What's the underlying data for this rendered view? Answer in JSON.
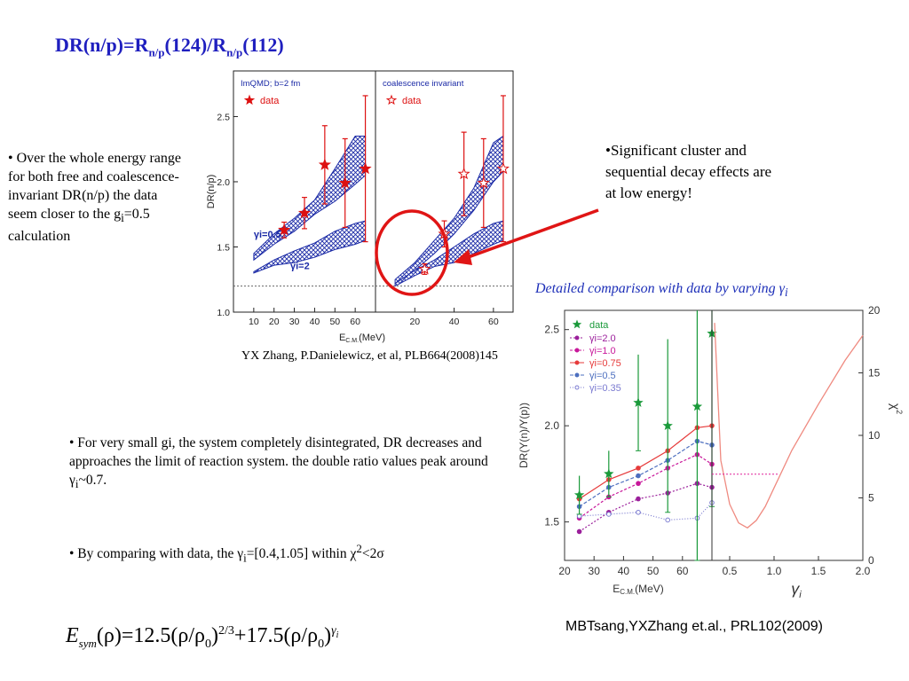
{
  "slide": {
    "title": {
      "main": "DR(n/p)=R",
      "sub1": "n/p",
      "mid": "(124)/R",
      "sub2": "n/p",
      "end": "(112)"
    },
    "left_bullet": {
      "prefix": "• Over the whole energy range for both free and coalescence-invariant DR(n/p) the data seem closer to the g",
      "sub": "i",
      "suffix": "=0.5 calculation"
    },
    "right_bullet": "•Significant cluster and sequential decay effects are at low energy!",
    "ref1": "YX Zhang, P.Danielewicz, et al, PLB664(2008)145",
    "detail_caption": {
      "text": "Detailed comparison with data by varying ",
      "symbol": "γ",
      "sub": "i"
    },
    "bullet3": {
      "text1": "•  For very small gi, the system completely disintegrated, DR decreases and approaches the limit of reaction system. the double ratio values peak around γ",
      "sub": "i",
      "text2": "~0.7."
    },
    "bullet4": {
      "text1": "•  By comparing with data, the γ",
      "sub": "i",
      "text2": "=[0.4,1.05] within χ",
      "sup": "2",
      "text3": "<2σ"
    },
    "ref2": "MBTsang,YXZhang et.al., PRL102(2009)",
    "equation": {
      "lhs": "E",
      "lhs_sub": "sym",
      "arg": "(ρ)",
      "eq": "=12.5(ρ/ρ",
      "rho_sub": "0",
      "exp1": "2/3",
      "plus": "+17.5(ρ/ρ",
      "exp2": "γ",
      "exp2_sub": "i"
    }
  },
  "chart_data": [
    {
      "type": "scatter",
      "panels": [
        "ImQMD; b=2 fm",
        "coalescence invariant"
      ],
      "legend": [
        "data"
      ],
      "ylabel": "DR(n/p)",
      "xlabel": "E",
      "xlabel_sub": "C.M.",
      "xlabel_unit": "(MeV)",
      "xlim": [
        0,
        70
      ],
      "ylim": [
        1.0,
        2.85
      ],
      "yticks": [
        "1.0",
        "1.5",
        "2.0",
        "2.5"
      ],
      "xticks": [
        "10",
        "20",
        "30",
        "40",
        "50",
        "60"
      ],
      "xticks_panel2": [
        "20",
        "40",
        "60"
      ],
      "reference_line": 1.2,
      "band_labels": [
        "γi=0.5",
        "γi=2"
      ],
      "data_free": {
        "x": [
          25,
          35,
          45,
          55,
          65
        ],
        "y": [
          1.63,
          1.76,
          2.13,
          1.99,
          2.1
        ],
        "err": [
          0.06,
          0.12,
          0.3,
          0.34,
          0.56
        ]
      },
      "data_coal": {
        "x": [
          25,
          35,
          45,
          55,
          65
        ],
        "y": [
          1.33,
          1.6,
          2.06,
          1.99,
          2.1
        ],
        "err": [
          0.04,
          0.1,
          0.32,
          0.34,
          0.56
        ]
      }
    },
    {
      "type": "line",
      "xlabel": "E",
      "xlabel_sub": "C.M.",
      "xlabel_unit": "(MeV)",
      "ylabel": "DR(Y(n)/Y(p))",
      "xlim": [
        20,
        70
      ],
      "ylim": [
        1.3,
        2.6
      ],
      "yticks": [
        "1.5",
        "2.0",
        "2.5"
      ],
      "xticks": [
        "20",
        "30",
        "40",
        "50",
        "60"
      ],
      "legend": [
        "data",
        "γi=2.0",
        "γi=1.0",
        "γi=0.75",
        "γi=0.5",
        "γi=0.35"
      ],
      "x": [
        25,
        35,
        45,
        55,
        65,
        70
      ],
      "data": {
        "y": [
          1.64,
          1.75,
          2.12,
          2.0,
          2.1,
          2.48
        ],
        "err": [
          0.1,
          0.12,
          0.25,
          0.45,
          0.8,
          0.9
        ]
      },
      "series": [
        {
          "name": "γi=2.0",
          "values": [
            1.45,
            1.55,
            1.62,
            1.65,
            1.7,
            1.68
          ]
        },
        {
          "name": "γi=1.0",
          "values": [
            1.52,
            1.63,
            1.7,
            1.78,
            1.85,
            1.8
          ]
        },
        {
          "name": "γi=0.75",
          "values": [
            1.62,
            1.72,
            1.78,
            1.87,
            1.99,
            2.0
          ]
        },
        {
          "name": "γi=0.5",
          "values": [
            1.58,
            1.68,
            1.74,
            1.82,
            1.92,
            1.9
          ]
        },
        {
          "name": "γi=0.35",
          "values": [
            1.53,
            1.54,
            1.55,
            1.51,
            1.52,
            1.6
          ]
        }
      ],
      "colors": {
        "data": "#1a9a3a",
        "g2": "#9b1f9b",
        "g1": "#c8189a",
        "g075": "#e63a3a",
        "g05": "#4d6fbf",
        "g035": "#7a7ad0"
      }
    },
    {
      "type": "line",
      "xlabel": "γ",
      "xlabel_sub": "i",
      "ylabel": "χ",
      "ylabel_sup": "2",
      "xlim": [
        0.3,
        2.0
      ],
      "ylim": [
        0,
        20
      ],
      "xticks": [
        "0.5",
        "1.0",
        "1.5",
        "2.0"
      ],
      "yticks": [
        "0",
        "5",
        "10",
        "15",
        "20"
      ],
      "x": [
        0.33,
        0.4,
        0.5,
        0.6,
        0.7,
        0.8,
        0.9,
        1.0,
        1.2,
        1.5,
        1.8,
        2.0
      ],
      "y": [
        19,
        8.0,
        4.5,
        3.0,
        2.6,
        3.2,
        4.3,
        5.8,
        8.8,
        12.5,
        16.0,
        18.0
      ],
      "threshold": {
        "y": 6.9,
        "x": [
          0.3,
          1.05
        ]
      },
      "color": "#ef8a80"
    }
  ]
}
